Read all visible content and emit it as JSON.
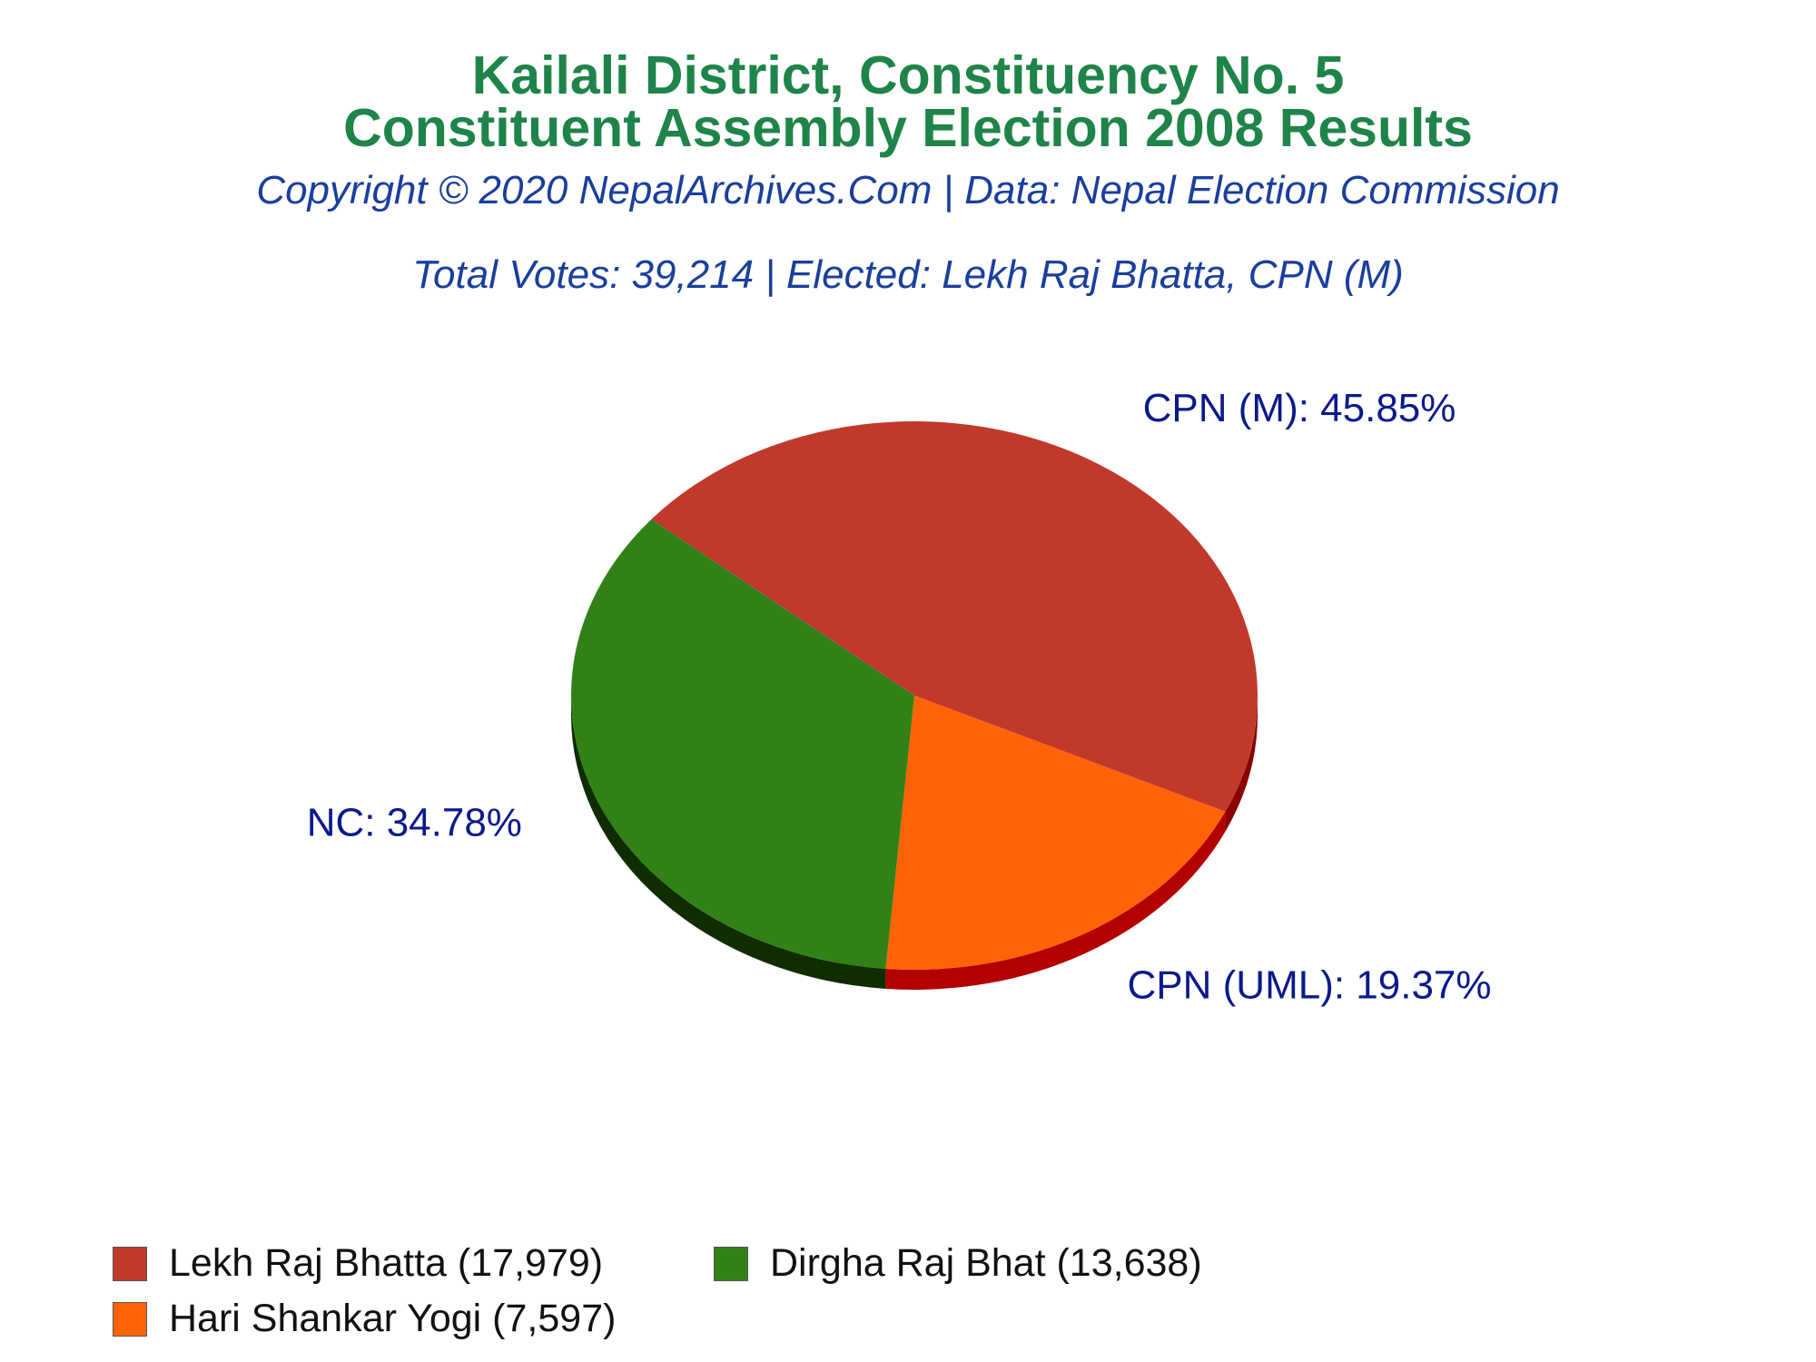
{
  "header": {
    "title_line1": "Kailali District, Constituency No. 5",
    "title_line2": "Constituent Assembly Election 2008 Results",
    "copyright": "Copyright © 2020 NepalArchives.Com | Data: Nepal Election Commission",
    "summary": "Total Votes: 39,214 | Elected: Lekh Raj Bhatta, CPN (M)"
  },
  "colors": {
    "title": "#1e8449",
    "subtitle": "#1a3f9c",
    "slice_label": "#0a1a8c"
  },
  "chart_data": {
    "type": "pie",
    "style": "3d",
    "total_votes": 39214,
    "slices": [
      {
        "party": "CPN (M)",
        "candidate": "Lekh Raj Bhatta",
        "votes": 17979,
        "percent": 45.85,
        "label": "CPN (M): 45.85%",
        "legend": "Lekh Raj Bhatta (17,979)",
        "color": "#c0392b",
        "side_color": "#8b0000"
      },
      {
        "party": "CPN (UML)",
        "candidate": "Hari Shankar Yogi",
        "votes": 7597,
        "percent": 19.37,
        "label": "CPN (UML): 19.37%",
        "legend": "Hari Shankar Yogi (7,597)",
        "color": "#ff6307",
        "side_color": "#b30000"
      },
      {
        "party": "NC",
        "candidate": "Dirgha Raj Bhat",
        "votes": 13638,
        "percent": 34.78,
        "label": "NC: 34.78%",
        "legend": "Dirgha Raj Bhat (13,638)",
        "color": "#318117",
        "side_color": "#0f2d00"
      }
    ],
    "legend_placement": "bottom-left"
  }
}
